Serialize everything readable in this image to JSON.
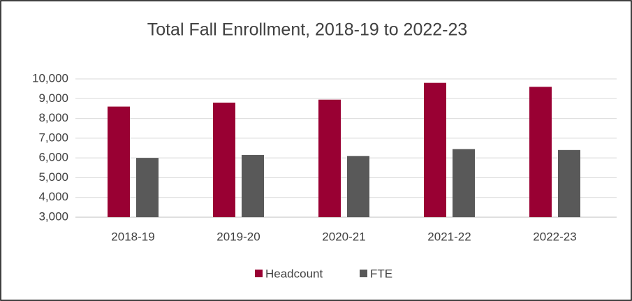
{
  "chart_data": {
    "type": "bar",
    "title": "Total Fall Enrollment, 2018-19 to 2022-23",
    "categories": [
      "2018-19",
      "2019-20",
      "2020-21",
      "2021-22",
      "2022-23"
    ],
    "series": [
      {
        "name": "Headcount",
        "color": "#990033",
        "values": [
          8600,
          8800,
          8950,
          9800,
          9600
        ]
      },
      {
        "name": "FTE",
        "color": "#595959",
        "values": [
          6000,
          6150,
          6100,
          6450,
          6400
        ]
      }
    ],
    "ylim": [
      3000,
      10000
    ],
    "yticks": [
      {
        "value": 3000,
        "label": "3,000"
      },
      {
        "value": 4000,
        "label": "4,000"
      },
      {
        "value": 5000,
        "label": "5,000"
      },
      {
        "value": 6000,
        "label": "6,000"
      },
      {
        "value": 7000,
        "label": "7,000"
      },
      {
        "value": 8000,
        "label": "8,000"
      },
      {
        "value": 9000,
        "label": "9,000"
      },
      {
        "value": 10000,
        "label": "10,000"
      }
    ],
    "grid": true,
    "legend": "bottom"
  }
}
